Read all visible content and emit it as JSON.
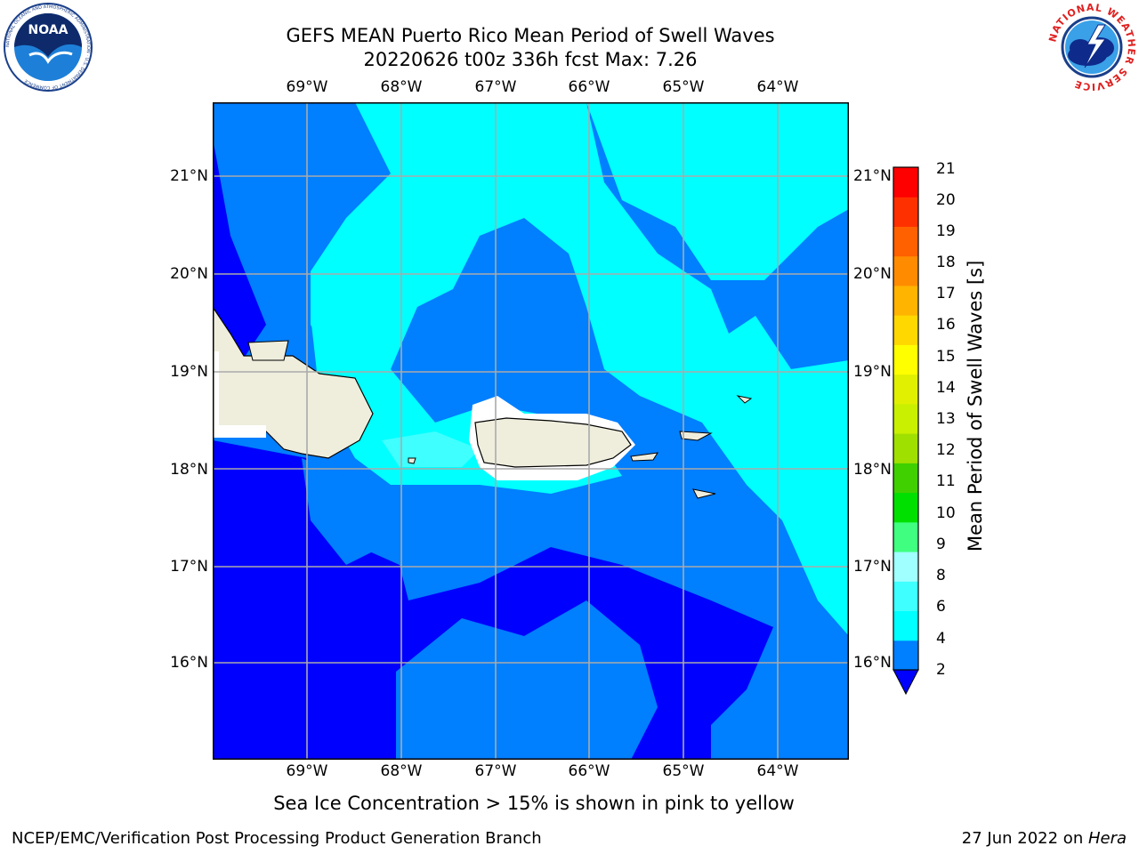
{
  "title": {
    "line1": "GEFS MEAN Puerto Rico Mean Period of Swell Waves",
    "line2": "20220626 t00z 336h fcst   Max: 7.26"
  },
  "logos": {
    "left": "NOAA",
    "left_ring": "NATIONAL OCEANIC AND ATMOSPHERIC ADMINISTRATION · U.S. DEPARTMENT OF COMMERCE",
    "right_ring": "NATIONAL WEATHER SERVICE"
  },
  "map": {
    "lon_labels": [
      "69°W",
      "68°W",
      "67°W",
      "66°W",
      "65°W",
      "64°W"
    ],
    "lat_labels": [
      "21°N",
      "20°N",
      "19°N",
      "18°N",
      "17°N",
      "16°N"
    ],
    "land_color": "#efeedd",
    "coast_color": "#000000",
    "grid_color": "#aaaaaa"
  },
  "colorbar": {
    "label": "Mean Period of Swell Waves [s]",
    "ticks": [
      "21",
      "20",
      "19",
      "18",
      "17",
      "16",
      "15",
      "14",
      "13",
      "12",
      "11",
      "10",
      "9",
      "8",
      "6",
      "4",
      "2"
    ],
    "colors": [
      "#0000ff",
      "#007fff",
      "#00ffff",
      "#40ffff",
      "#a0ffff",
      "#40ff80",
      "#00e000",
      "#40d000",
      "#a0e000",
      "#c8f000",
      "#e0f000",
      "#ffff00",
      "#ffd800",
      "#ffb400",
      "#ff8c00",
      "#ff6000",
      "#ff3000",
      "#ff0000"
    ]
  },
  "note": "Sea Ice Concentration > 15% is shown in pink to yellow",
  "footer": {
    "left": "NCEP/EMC/Verification Post Processing Product Generation Branch",
    "date": "27 Jun 2022 on ",
    "machine": "Hera"
  }
}
